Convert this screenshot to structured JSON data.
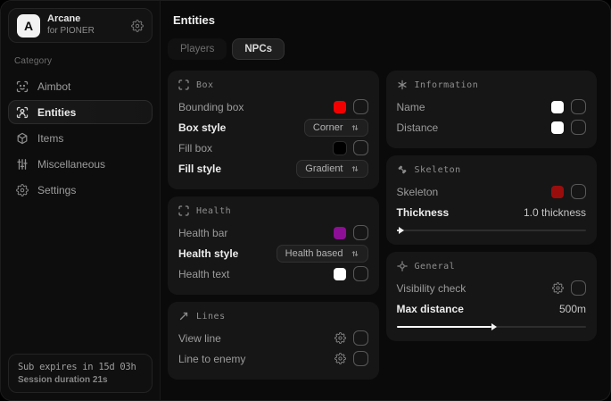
{
  "sidebar": {
    "app_name": "Arcane",
    "app_subtitle": "for PIONER",
    "logo_letter": "A",
    "category_label": "Category",
    "items": [
      {
        "label": "Aimbot"
      },
      {
        "label": "Entities"
      },
      {
        "label": "Items"
      },
      {
        "label": "Miscellaneous"
      },
      {
        "label": "Settings"
      }
    ],
    "footer": {
      "sub_expires": "Sub expires in 15d 03h",
      "session_duration": "Session duration 21s"
    }
  },
  "main": {
    "title": "Entities",
    "tabs": [
      {
        "label": "Players"
      },
      {
        "label": "NPCs"
      }
    ]
  },
  "cards": {
    "box": {
      "title": "Box",
      "rows": [
        {
          "label": "Bounding box",
          "color": "#f20000"
        },
        {
          "label": "Box style",
          "value": "Corner"
        },
        {
          "label": "Fill box",
          "color": "#000000"
        },
        {
          "label": "Fill style",
          "value": "Gradient"
        }
      ]
    },
    "health": {
      "title": "Health",
      "rows": [
        {
          "label": "Health bar",
          "color": "#8d0f96"
        },
        {
          "label": "Health style",
          "value": "Health based"
        },
        {
          "label": "Health text",
          "color": "#ffffff"
        }
      ]
    },
    "lines": {
      "title": "Lines",
      "rows": [
        {
          "label": "View line"
        },
        {
          "label": "Line to enemy"
        }
      ]
    },
    "information": {
      "title": "Information",
      "rows": [
        {
          "label": "Name",
          "color": "#ffffff"
        },
        {
          "label": "Distance",
          "color": "#ffffff"
        }
      ]
    },
    "skeleton": {
      "title": "Skeleton",
      "rows": [
        {
          "label": "Skeleton",
          "color": "#9a0d0d"
        }
      ],
      "slider": {
        "label": "Thickness",
        "value": "1.0 thickness",
        "percent": 1
      }
    },
    "general": {
      "title": "General",
      "rows": [
        {
          "label": "Visibility check"
        }
      ],
      "slider": {
        "label": "Max distance",
        "value": "500m",
        "percent": 50
      }
    }
  }
}
